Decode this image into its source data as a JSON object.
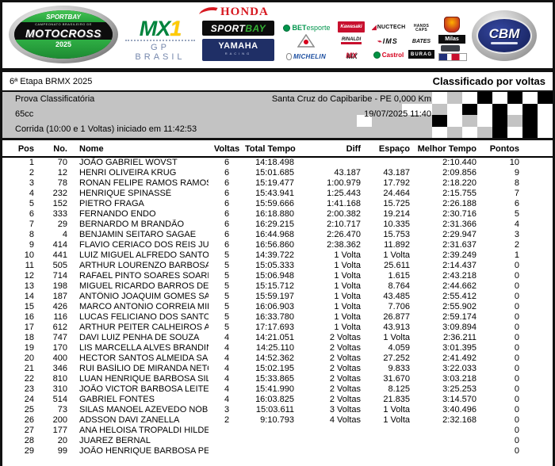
{
  "title_bar": {
    "left": "6ª Etapa BRMX 2025",
    "right": "Classificado por voltas"
  },
  "info": {
    "session": "Prova Classificatória",
    "location": "Santa Cruz do Capibaribe - PE 0,000 Km",
    "category": "65cc",
    "datetime": "19/07/2025 11:40",
    "race_line": "Corrida (10:00 e 1 Voltas) iniciado em 11:42:53",
    "box_bg": "#c3c3c3",
    "flag_colors": {
      "w": "#ffffff",
      "g": "transparent",
      "b": "#000000"
    },
    "flag_pattern": [
      "ggggggwgwbwbwb",
      "ggggwwgwbwbwbw",
      "gwggggbwgwbgbw",
      "ggggggwgwgbwbw"
    ]
  },
  "logos": {
    "badge": {
      "brand": "SPORTBAY",
      "subtitle": "CAMPEONATO BRASILEIRO DE",
      "title": "MOTOCROSS",
      "year": "2025"
    },
    "mx1": {
      "mx": "MX",
      "one": "1",
      "sub": "GP BRASIL"
    },
    "honda": {
      "text": "HONDA"
    },
    "sportbay": {
      "part1": "SPORT",
      "part2": "BAY"
    },
    "yamaha": {
      "text": "YAMAHA",
      "sub": "RACING"
    },
    "betesporte": {
      "bold": "BET",
      "rest": "esporte"
    },
    "michelin": {
      "text": "MICHELIN"
    },
    "kawasaki": {
      "text": "Kawasaki"
    },
    "rinaldi": {
      "text": "RINALDI"
    },
    "mxstore": {
      "text": "MX"
    },
    "nuctech": {
      "text": "NUCTECH"
    },
    "ims": {
      "text": "IMS"
    },
    "castrol": {
      "text": "Castrol"
    },
    "handscaps": {
      "line1": "HANDS",
      "line2": "CAPS"
    },
    "bates": {
      "text": "BATES"
    },
    "burag": {
      "text": "BURAG"
    },
    "milas": {
      "text": "Milas"
    },
    "cbm": {
      "text": "CBM"
    }
  },
  "table": {
    "keys": [
      "pos",
      "no",
      "nome",
      "voltas",
      "total",
      "diff",
      "espaco",
      "melhor",
      "pontos"
    ],
    "columns": [
      "Pos",
      "No.",
      "Nome",
      "Voltas",
      "Total Tempo",
      "Diff",
      "Espaço",
      "Melhor Tempo",
      "Pontos"
    ],
    "rows": [
      [
        "1",
        "70",
        "JOÃO GABRIEL WOVST",
        "6",
        "14:18.498",
        "",
        "",
        "2:10.440",
        "10"
      ],
      [
        "2",
        "12",
        "HENRI OLIVEIRA KRUG",
        "6",
        "15:01.685",
        "43.187",
        "43.187",
        "2:09.856",
        "9"
      ],
      [
        "3",
        "78",
        "RONAN FELIPE RAMOS RAMOS",
        "6",
        "15:19.477",
        "1:00.979",
        "17.792",
        "2:18.220",
        "8"
      ],
      [
        "4",
        "232",
        "HENRIQUE SPINASSÉ",
        "6",
        "15:43.941",
        "1:25.443",
        "24.464",
        "2:15.755",
        "7"
      ],
      [
        "5",
        "152",
        "PIETRO FRAGA",
        "6",
        "15:59.666",
        "1:41.168",
        "15.725",
        "2:26.188",
        "6"
      ],
      [
        "6",
        "333",
        "FERNANDO ENDO",
        "6",
        "16:18.880",
        "2:00.382",
        "19.214",
        "2:30.716",
        "5"
      ],
      [
        "7",
        "29",
        "BERNARDO M BRANDÃO",
        "6",
        "16:29.215",
        "2:10.717",
        "10.335",
        "2:31.366",
        "4"
      ],
      [
        "8",
        "4",
        "BENJAMIN SEITARO SAGAE",
        "6",
        "16:44.968",
        "2:26.470",
        "15.753",
        "2:29.947",
        "3"
      ],
      [
        "9",
        "414",
        "FLAVIO CERIACO DOS REIS JUN",
        "6",
        "16:56.860",
        "2:38.362",
        "11.892",
        "2:31.637",
        "2"
      ],
      [
        "10",
        "441",
        "LUIZ MIGUEL ALFREDO  SANTOS",
        "5",
        "14:39.722",
        "1 Volta",
        "1 Volta",
        "2:39.249",
        "1"
      ],
      [
        "11",
        "505",
        "ARTHUR LOURENZO BARBOSA R",
        "5",
        "15:05.333",
        "1 Volta",
        "25.611",
        "2:14.437",
        "0"
      ],
      [
        "12",
        "714",
        "RAFAEL PINTO SOARES SOARES",
        "5",
        "15:06.948",
        "1 Volta",
        "1.615",
        "2:43.218",
        "0"
      ],
      [
        "13",
        "198",
        "MIGUEL RICARDO BARROS DE L",
        "5",
        "15:15.712",
        "1 Volta",
        "8.764",
        "2:44.662",
        "0"
      ],
      [
        "14",
        "187",
        "ANTÔNIO JOAQUIM GOMES SAL",
        "5",
        "15:59.197",
        "1 Volta",
        "43.485",
        "2:55.412",
        "0"
      ],
      [
        "15",
        "426",
        "MARCO ANTONIO CORREIA MIR.",
        "5",
        "16:06.903",
        "1 Volta",
        "7.706",
        "2:55.902",
        "0"
      ],
      [
        "16",
        "116",
        "LUCAS FELICIANO DOS SANTOS",
        "5",
        "16:33.780",
        "1 Volta",
        "26.877",
        "2:59.174",
        "0"
      ],
      [
        "17",
        "612",
        "ARTHUR PEITER CALHEIROS AR",
        "5",
        "17:17.693",
        "1 Volta",
        "43.913",
        "3:09.894",
        "0"
      ],
      [
        "18",
        "747",
        "DAVI LUIZ PENHA DE SOUZA",
        "4",
        "14:21.051",
        "2 Voltas",
        "1 Volta",
        "2:36.211",
        "0"
      ],
      [
        "19",
        "170",
        "LIS MARCELLA ALVES BRANDINO",
        "4",
        "14:25.110",
        "2 Voltas",
        "4.059",
        "3:01.395",
        "0"
      ],
      [
        "20",
        "400",
        "HECTOR SANTOS ALMEIDA SANT",
        "4",
        "14:52.362",
        "2 Voltas",
        "27.252",
        "2:41.492",
        "0"
      ],
      [
        "21",
        "346",
        "RUI BASÍLIO DE MIRANDA NETO",
        "4",
        "15:02.195",
        "2 Voltas",
        "9.833",
        "3:22.033",
        "0"
      ],
      [
        "22",
        "810",
        "LUAN HENRIQUE BARBOSA SILV",
        "4",
        "15:33.865",
        "2 Voltas",
        "31.670",
        "3:03.218",
        "0"
      ],
      [
        "23",
        "310",
        "JOÃO VICTOR BARBOSA LEITE",
        "4",
        "15:41.990",
        "2 Voltas",
        "8.125",
        "3:25.253",
        "0"
      ],
      [
        "24",
        "514",
        "GABRIEL FONTES",
        "4",
        "16:03.825",
        "2 Voltas",
        "21.835",
        "3:14.570",
        "0"
      ],
      [
        "25",
        "73",
        "SILAS MANOEL AZEVEDO NÓBRE",
        "3",
        "15:03.611",
        "3 Voltas",
        "1 Volta",
        "3:40.496",
        "0"
      ],
      [
        "26",
        "200",
        "ADSSON DAVI ZANELLA",
        "2",
        "9:10.793",
        "4 Voltas",
        "1 Volta",
        "2:32.168",
        "0"
      ],
      [
        "27",
        "177",
        "ANA HELOISA TROPALDI HILDES",
        "",
        "",
        "",
        "",
        "",
        "0"
      ],
      [
        "28",
        "20",
        "JUAREZ BERNAL",
        "",
        "",
        "",
        "",
        "",
        "0"
      ],
      [
        "29",
        "99",
        "JOÃO HENRIQUE BARBOSA PERE",
        "",
        "",
        "",
        "",
        "",
        "0"
      ]
    ]
  }
}
